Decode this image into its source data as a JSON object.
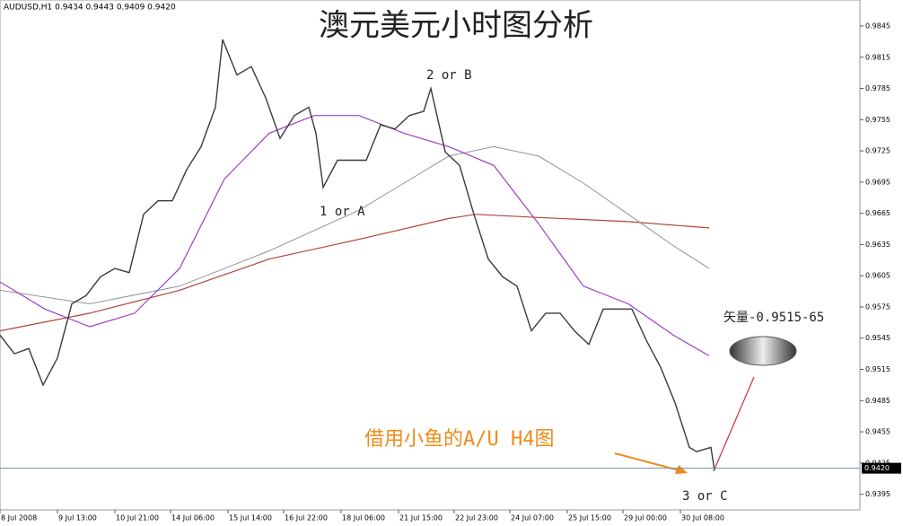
{
  "chart_data": {
    "type": "line",
    "header": "AUDUSD,H1  0.9434 0.9443 0.9409 0.9420",
    "title": "澳元美元小时图分析",
    "annotations": [
      "2 or B",
      "1 or A",
      "3 or C",
      "矢量-0.9515-65",
      "借用小鱼的A/U H4图"
    ],
    "xlim": [
      0,
      479
    ],
    "xticks": [
      {
        "value": 0,
        "label": "8 Jul 2008"
      },
      {
        "value": 32,
        "label": "9 Jul 13:00"
      },
      {
        "value": 64,
        "label": "10 Jul 21:00"
      },
      {
        "value": 95,
        "label": "14 Jul 06:00"
      },
      {
        "value": 127,
        "label": "15 Jul 14:00"
      },
      {
        "value": 158,
        "label": "16 Jul 22:00"
      },
      {
        "value": 190,
        "label": "18 Jul 06:00"
      },
      {
        "value": 222,
        "label": "21 Jul 15:00"
      },
      {
        "value": 253,
        "label": "22 Jul 23:00"
      },
      {
        "value": 284,
        "label": "24 Jul 07:00"
      },
      {
        "value": 316,
        "label": "25 Jul 15:00"
      },
      {
        "value": 347,
        "label": "29 Jul 00:00"
      },
      {
        "value": 379,
        "label": "30 Jul 08:00"
      }
    ],
    "ylim": [
      0.938,
      0.987
    ],
    "yticks": [
      0.9845,
      0.9815,
      0.9785,
      0.9755,
      0.9725,
      0.9695,
      0.9665,
      0.9635,
      0.9605,
      0.9575,
      0.9545,
      0.9515,
      0.9485,
      0.9455,
      0.9425,
      0.9395
    ],
    "price_line": {
      "value": 0.942,
      "label": "0.9420"
    },
    "price_line_color": "#6f8fb0",
    "series": [
      {
        "color": "#b0443c",
        "width": 1.2,
        "x": [
          0,
          50,
          100,
          150,
          200,
          250,
          265,
          300,
          350,
          395
        ],
        "values": [
          0.9552,
          0.9569,
          0.9591,
          0.9621,
          0.964,
          0.966,
          0.9664,
          0.9661,
          0.9657,
          0.9651
        ]
      },
      {
        "color": "#8a96a0",
        "width": 1,
        "x": [
          0,
          50,
          100,
          150,
          200,
          225,
          250,
          275,
          300,
          325,
          350,
          375,
          395
        ],
        "values": [
          0.9591,
          0.9578,
          0.9595,
          0.9629,
          0.9668,
          0.9694,
          0.972,
          0.9729,
          0.972,
          0.9694,
          0.9664,
          0.9634,
          0.9612
        ]
      },
      {
        "color": "#9b3fc0",
        "width": 1.2,
        "x": [
          0,
          25,
          50,
          75,
          100,
          125,
          150,
          175,
          200,
          225,
          250,
          275,
          300,
          325,
          350,
          375,
          395
        ],
        "values": [
          0.9599,
          0.9573,
          0.9556,
          0.9569,
          0.9612,
          0.9698,
          0.9742,
          0.9759,
          0.9759,
          0.9742,
          0.9729,
          0.9711,
          0.9655,
          0.9595,
          0.9578,
          0.9548,
          0.9528
        ]
      },
      {
        "color": "#3a3a3a",
        "width": 1.4,
        "x": [
          0,
          8,
          16,
          24,
          32,
          40,
          48,
          56,
          64,
          72,
          80,
          88,
          96,
          104,
          112,
          120,
          124,
          132,
          140,
          148,
          156,
          164,
          172,
          176,
          180,
          188,
          196,
          204,
          212,
          220,
          228,
          236,
          240,
          248,
          256,
          264,
          272,
          280,
          288,
          296,
          304,
          312,
          320,
          328,
          336,
          344,
          352,
          360,
          368,
          376,
          384,
          388,
          396,
          398
        ],
        "values": [
          0.9548,
          0.953,
          0.9535,
          0.95,
          0.9526,
          0.9578,
          0.9586,
          0.9604,
          0.9612,
          0.9608,
          0.9664,
          0.9677,
          0.9677,
          0.9707,
          0.9729,
          0.9767,
          0.9832,
          0.9798,
          0.9806,
          0.9776,
          0.9737,
          0.9759,
          0.9767,
          0.9742,
          0.969,
          0.9716,
          0.9716,
          0.9716,
          0.975,
          0.9746,
          0.9759,
          0.9763,
          0.9785,
          0.9724,
          0.9711,
          0.9664,
          0.9621,
          0.9604,
          0.9595,
          0.9552,
          0.9569,
          0.9569,
          0.9552,
          0.9539,
          0.9573,
          0.9573,
          0.9573,
          0.9543,
          0.9517,
          0.9483,
          0.944,
          0.9436,
          0.944,
          0.9418
        ]
      }
    ]
  }
}
